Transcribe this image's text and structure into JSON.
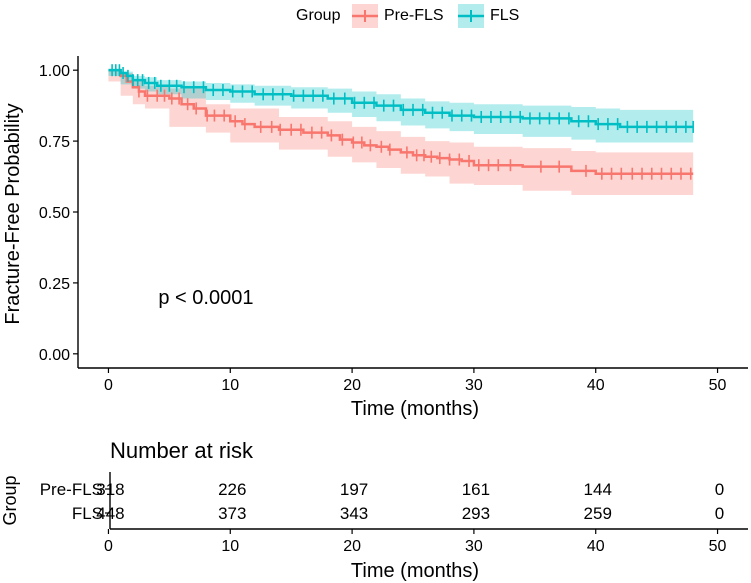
{
  "chart_data": {
    "type": "line",
    "subtype": "kaplan-meier",
    "legend": {
      "title": "Group",
      "placement": "top"
    },
    "xlabel": "Time (months)",
    "ylabel": "Fracture-Free Probability",
    "xlim": [
      -2.5,
      52.5
    ],
    "ylim": [
      -0.05,
      1.05
    ],
    "xticks": [
      0,
      10,
      20,
      30,
      40,
      50
    ],
    "yticks": [
      0.0,
      0.25,
      0.5,
      0.75,
      1.0
    ],
    "ytick_labels": [
      "0.00",
      "0.25",
      "0.50",
      "0.75",
      "1.00"
    ],
    "grid": false,
    "annotation": "p < 0.0001",
    "annotation_at": {
      "x": 5,
      "y": 0.2
    },
    "series": [
      {
        "name": "Pre-FLS",
        "color": "#F8766D",
        "steps": [
          [
            0,
            1.0
          ],
          [
            1,
            0.98
          ],
          [
            1.5,
            0.96
          ],
          [
            2,
            0.94
          ],
          [
            2.5,
            0.925
          ],
          [
            3,
            0.91
          ],
          [
            5,
            0.9
          ],
          [
            6,
            0.88
          ],
          [
            7,
            0.865
          ],
          [
            8,
            0.84
          ],
          [
            10,
            0.82
          ],
          [
            11,
            0.81
          ],
          [
            12,
            0.8
          ],
          [
            14,
            0.79
          ],
          [
            16,
            0.78
          ],
          [
            18,
            0.77
          ],
          [
            19,
            0.755
          ],
          [
            20,
            0.745
          ],
          [
            21,
            0.735
          ],
          [
            22,
            0.73
          ],
          [
            23,
            0.72
          ],
          [
            24,
            0.71
          ],
          [
            25,
            0.7
          ],
          [
            26,
            0.695
          ],
          [
            27,
            0.69
          ],
          [
            28,
            0.685
          ],
          [
            29,
            0.68
          ],
          [
            30,
            0.665
          ],
          [
            34,
            0.66
          ],
          [
            38,
            0.645
          ],
          [
            40,
            0.635
          ],
          [
            48,
            0.635
          ]
        ],
        "band": [
          [
            0,
            1.0,
            1.0
          ],
          [
            1,
            0.96,
            0.99
          ],
          [
            2,
            0.91,
            0.965
          ],
          [
            3,
            0.88,
            0.945
          ],
          [
            5,
            0.865,
            0.935
          ],
          [
            8,
            0.8,
            0.88
          ],
          [
            10,
            0.78,
            0.865
          ],
          [
            14,
            0.745,
            0.835
          ],
          [
            18,
            0.72,
            0.82
          ],
          [
            20,
            0.695,
            0.8
          ],
          [
            22,
            0.675,
            0.785
          ],
          [
            24,
            0.655,
            0.765
          ],
          [
            26,
            0.635,
            0.75
          ],
          [
            28,
            0.625,
            0.745
          ],
          [
            30,
            0.6,
            0.73
          ],
          [
            34,
            0.595,
            0.725
          ],
          [
            38,
            0.575,
            0.715
          ],
          [
            40,
            0.56,
            0.71
          ],
          [
            48,
            0.56,
            0.71
          ]
        ],
        "censor_times": [
          2.5,
          3.2,
          4,
          4.6,
          5.2,
          5.8,
          6.5,
          7.2,
          8.1,
          8.7,
          9.5,
          10.4,
          11.2,
          12.5,
          13.4,
          14.1,
          15,
          15.8,
          16.7,
          17.5,
          18.3,
          19.2,
          20.1,
          20.8,
          21.5,
          22.4,
          23.1,
          24.5,
          25.3,
          25.9,
          26.5,
          27.2,
          28,
          28.8,
          29.6,
          30.4,
          31.2,
          32,
          33,
          35.5,
          37,
          39.2,
          40.5,
          41.3,
          42.1,
          43,
          43.8,
          44.6,
          45.4,
          46.2,
          47,
          47.8
        ]
      },
      {
        "name": "FLS",
        "color": "#00BFC4",
        "steps": [
          [
            0,
            1.0
          ],
          [
            1,
            0.99
          ],
          [
            1.5,
            0.98
          ],
          [
            2,
            0.965
          ],
          [
            3,
            0.955
          ],
          [
            4,
            0.945
          ],
          [
            6,
            0.94
          ],
          [
            8,
            0.93
          ],
          [
            10,
            0.925
          ],
          [
            12,
            0.915
          ],
          [
            15,
            0.91
          ],
          [
            18,
            0.9
          ],
          [
            20,
            0.885
          ],
          [
            22,
            0.875
          ],
          [
            24,
            0.86
          ],
          [
            26,
            0.85
          ],
          [
            28,
            0.84
          ],
          [
            30,
            0.835
          ],
          [
            34,
            0.83
          ],
          [
            38,
            0.82
          ],
          [
            40,
            0.81
          ],
          [
            42,
            0.8
          ],
          [
            48,
            0.8
          ]
        ],
        "band": [
          [
            0,
            1.0,
            1.0
          ],
          [
            1,
            0.98,
            0.995
          ],
          [
            2,
            0.95,
            0.98
          ],
          [
            3,
            0.935,
            0.975
          ],
          [
            4,
            0.925,
            0.965
          ],
          [
            6,
            0.915,
            0.96
          ],
          [
            8,
            0.9,
            0.955
          ],
          [
            10,
            0.895,
            0.95
          ],
          [
            12,
            0.885,
            0.945
          ],
          [
            15,
            0.875,
            0.94
          ],
          [
            18,
            0.865,
            0.935
          ],
          [
            20,
            0.85,
            0.925
          ],
          [
            22,
            0.835,
            0.915
          ],
          [
            24,
            0.82,
            0.9
          ],
          [
            26,
            0.805,
            0.89
          ],
          [
            28,
            0.795,
            0.885
          ],
          [
            30,
            0.785,
            0.88
          ],
          [
            34,
            0.775,
            0.875
          ],
          [
            38,
            0.765,
            0.87
          ],
          [
            40,
            0.755,
            0.865
          ],
          [
            42,
            0.745,
            0.86
          ],
          [
            48,
            0.745,
            0.86
          ]
        ],
        "censor_times": [
          0.3,
          0.6,
          0.9,
          1.2,
          1.6,
          2,
          2.4,
          2.8,
          3.3,
          3.8,
          4.3,
          5,
          5.6,
          6.2,
          7,
          7.8,
          8.6,
          9.4,
          10.2,
          11,
          11.8,
          12.7,
          13.5,
          14.3,
          15.2,
          16,
          16.8,
          17.6,
          18.5,
          19.4,
          20.2,
          21,
          21.8,
          22.6,
          23.4,
          24.2,
          25,
          25.8,
          26.6,
          27.4,
          28.2,
          29,
          29.8,
          30.6,
          31.4,
          32.2,
          33,
          33.8,
          34.6,
          35.4,
          36.2,
          37,
          37.8,
          38.6,
          39.4,
          40.2,
          41,
          41.8,
          42.6,
          43.4,
          44.2,
          45,
          45.8,
          46.6,
          47.4,
          48
        ]
      }
    ],
    "risk_table": {
      "title": "Number at risk",
      "ylabel": "Group",
      "xlabel": "Time (months)",
      "xticks": [
        0,
        10,
        20,
        30,
        40,
        50
      ],
      "times": [
        0,
        10,
        20,
        30,
        40,
        50
      ],
      "rows": [
        {
          "name": "Pre-FLS",
          "color": "#F8766D",
          "values": [
            "318",
            "226",
            "197",
            "161",
            "144",
            "0"
          ]
        },
        {
          "name": "FLS",
          "color": "#00BFC4",
          "values": [
            "448",
            "373",
            "343",
            "293",
            "259",
            "0"
          ]
        }
      ]
    }
  }
}
